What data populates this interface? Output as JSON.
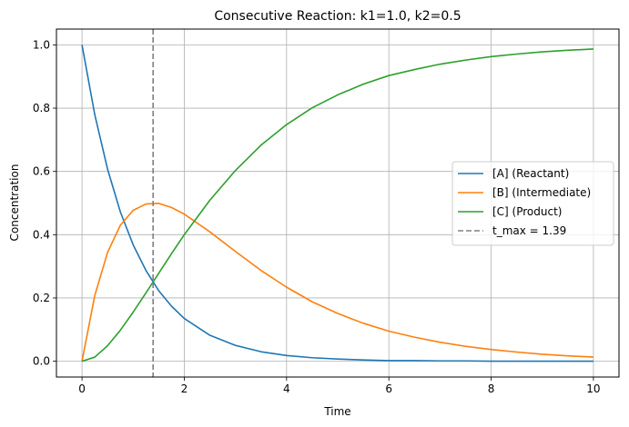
{
  "chart_data": {
    "type": "line",
    "title": "Consecutive Reaction: k1=1.0, k2=0.5",
    "xlabel": "Time",
    "ylabel": "Concentration",
    "xlim": [
      -0.5,
      10.5
    ],
    "ylim": [
      -0.05,
      1.05
    ],
    "x_ticks": [
      0,
      2,
      4,
      6,
      8,
      10
    ],
    "x_tick_labels": [
      "0",
      "2",
      "4",
      "6",
      "8",
      "10"
    ],
    "y_ticks": [
      0.0,
      0.2,
      0.4,
      0.6,
      0.8,
      1.0
    ],
    "y_tick_labels": [
      "0.0",
      "0.2",
      "0.4",
      "0.6",
      "0.8",
      "1.0"
    ],
    "grid": true,
    "legend_position": "center-right",
    "x": [
      0,
      0.25,
      0.5,
      0.75,
      1,
      1.25,
      1.5,
      1.75,
      2,
      2.5,
      3,
      3.5,
      4,
      4.5,
      5,
      5.5,
      6,
      6.5,
      7,
      7.5,
      8,
      8.5,
      9,
      9.5,
      10
    ],
    "series": [
      {
        "name": "[A] (Reactant)",
        "color": "#1f77b4",
        "values": [
          1.0,
          0.779,
          0.607,
          0.472,
          0.368,
          0.287,
          0.223,
          0.174,
          0.135,
          0.082,
          0.05,
          0.03,
          0.018,
          0.011,
          0.007,
          0.004,
          0.002,
          0.002,
          0.001,
          0.001,
          0.0,
          0.0,
          0.0,
          0.0,
          0.0
        ]
      },
      {
        "name": "[B] (Intermediate)",
        "color": "#ff7f0e",
        "values": [
          0.0,
          0.208,
          0.344,
          0.43,
          0.477,
          0.497,
          0.499,
          0.486,
          0.465,
          0.409,
          0.347,
          0.287,
          0.234,
          0.188,
          0.151,
          0.12,
          0.095,
          0.076,
          0.06,
          0.047,
          0.037,
          0.029,
          0.022,
          0.017,
          0.013
        ]
      },
      {
        "name": "[C] (Product)",
        "color": "#2ca02c",
        "values": [
          0.0,
          0.013,
          0.049,
          0.098,
          0.155,
          0.216,
          0.278,
          0.34,
          0.4,
          0.509,
          0.603,
          0.683,
          0.748,
          0.801,
          0.842,
          0.876,
          0.903,
          0.922,
          0.939,
          0.952,
          0.963,
          0.971,
          0.978,
          0.983,
          0.987
        ]
      }
    ],
    "annotation": {
      "label": "t_max = 1.39",
      "x": 1.39,
      "color": "#808080",
      "style": "dashed"
    }
  }
}
